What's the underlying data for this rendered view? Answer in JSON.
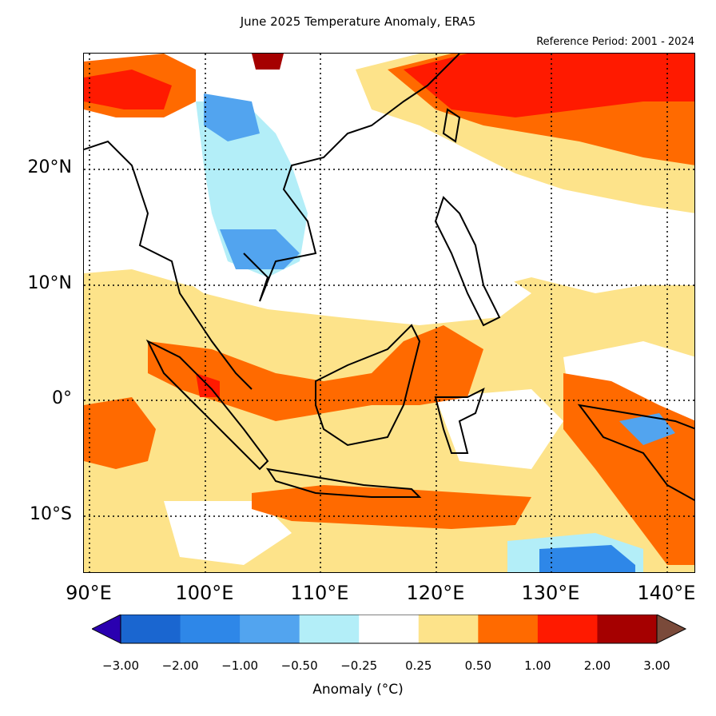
{
  "title": "June 2025 Temperature Anomaly, ERA5",
  "subtitle": "Reference Period: 2001 - 2024",
  "map": {
    "extent_lon": [
      89.5,
      142.5
    ],
    "extent_lat": [
      -15,
      30
    ],
    "lat_ticks": [
      {
        "value": 20,
        "label": "20°N"
      },
      {
        "value": 10,
        "label": "10°N"
      },
      {
        "value": 0,
        "label": "0°"
      },
      {
        "value": -10,
        "label": "10°S"
      }
    ],
    "lon_ticks": [
      {
        "value": 90,
        "label": "90°E"
      },
      {
        "value": 100,
        "label": "100°E"
      },
      {
        "value": 110,
        "label": "110°E"
      },
      {
        "value": 120,
        "label": "120°E"
      },
      {
        "value": 130,
        "label": "130°E"
      },
      {
        "value": 140,
        "label": "140°E"
      }
    ],
    "gridlines": "dotted"
  },
  "colorbar": {
    "label": "Anomaly (°C)",
    "ticks": [
      "−3.00",
      "−2.00",
      "−1.00",
      "−0.50",
      "−0.25",
      "0.25",
      "0.50",
      "1.00",
      "2.00",
      "3.00"
    ],
    "colors": [
      "#1a66d0",
      "#2e87e8",
      "#52a4ef",
      "#b3eef8",
      "#ffffff",
      "#fde38a",
      "#ff6a00",
      "#ff1a00",
      "#a50000"
    ],
    "under_color": "#2a00b0",
    "over_color": "#7a4a3a"
  },
  "colors": {
    "light_warm": "#fde38a",
    "orange": "#ff6a00",
    "red": "#ff1a00",
    "dark_red": "#a50000",
    "light_cool": "#b3eef8",
    "mid_blue": "#52a4ef",
    "blue": "#2e87e8"
  }
}
